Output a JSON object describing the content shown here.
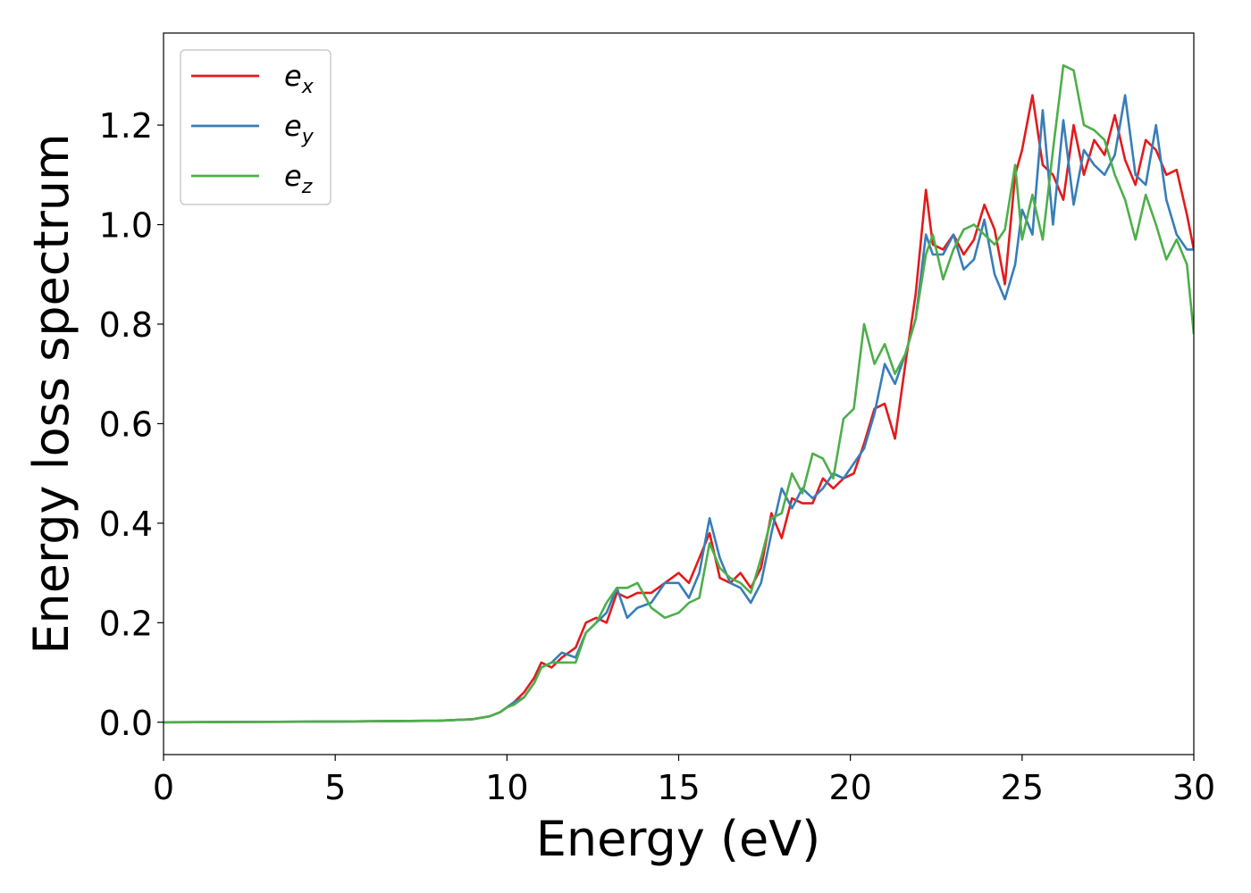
{
  "chart_data": {
    "type": "line",
    "title": "",
    "xlabel": "Energy (eV)",
    "ylabel": "Energy loss spectrum",
    "xlim": [
      0,
      30
    ],
    "ylim": [
      -0.065,
      1.385
    ],
    "xticks": [
      0,
      5,
      10,
      15,
      20,
      25,
      30
    ],
    "xtick_labels": [
      "0",
      "5",
      "10",
      "15",
      "20",
      "25",
      "30"
    ],
    "yticks": [
      0.0,
      0.2,
      0.4,
      0.6,
      0.8,
      1.0,
      1.2
    ],
    "ytick_labels": [
      "0.0",
      "0.2",
      "0.4",
      "0.6",
      "0.8",
      "1.0",
      "1.2"
    ],
    "grid": false,
    "legend_position": "top-left",
    "series": [
      {
        "name": "e_x",
        "legend_base": "e",
        "legend_sub": "x",
        "color": "#e41a1c",
        "x": [
          0,
          2,
          4,
          6,
          8,
          9,
          9.5,
          9.8,
          10.0,
          10.2,
          10.5,
          10.8,
          11.0,
          11.3,
          11.6,
          12.0,
          12.3,
          12.6,
          12.9,
          13.2,
          13.5,
          13.8,
          14.2,
          14.6,
          15.0,
          15.3,
          15.6,
          15.9,
          16.2,
          16.5,
          16.8,
          17.1,
          17.4,
          17.7,
          18.0,
          18.3,
          18.6,
          18.9,
          19.2,
          19.5,
          19.8,
          20.1,
          20.4,
          20.7,
          21.0,
          21.3,
          21.6,
          21.9,
          22.2,
          22.4,
          22.7,
          23.0,
          23.3,
          23.6,
          23.9,
          24.2,
          24.5,
          24.8,
          25.0,
          25.3,
          25.6,
          25.9,
          26.2,
          26.5,
          26.8,
          27.1,
          27.4,
          27.7,
          28.0,
          28.3,
          28.6,
          28.9,
          29.2,
          29.5,
          29.8,
          30.0
        ],
        "y": [
          0.0,
          0.0005,
          0.001,
          0.002,
          0.003,
          0.006,
          0.012,
          0.02,
          0.03,
          0.04,
          0.06,
          0.09,
          0.12,
          0.11,
          0.13,
          0.15,
          0.2,
          0.21,
          0.2,
          0.26,
          0.25,
          0.26,
          0.26,
          0.28,
          0.3,
          0.28,
          0.33,
          0.38,
          0.29,
          0.28,
          0.3,
          0.27,
          0.31,
          0.42,
          0.37,
          0.45,
          0.44,
          0.44,
          0.49,
          0.47,
          0.49,
          0.5,
          0.56,
          0.63,
          0.64,
          0.57,
          0.72,
          0.86,
          1.07,
          0.96,
          0.95,
          0.98,
          0.94,
          0.97,
          1.04,
          0.99,
          0.88,
          1.1,
          1.15,
          1.26,
          1.12,
          1.1,
          1.05,
          1.2,
          1.1,
          1.17,
          1.14,
          1.22,
          1.13,
          1.08,
          1.17,
          1.15,
          1.1,
          1.11,
          1.02,
          0.95
        ]
      },
      {
        "name": "e_y",
        "legend_base": "e",
        "legend_sub": "y",
        "color": "#377eb8",
        "x": [
          0,
          2,
          4,
          6,
          8,
          9,
          9.5,
          9.8,
          10.0,
          10.2,
          10.5,
          10.8,
          11.0,
          11.3,
          11.6,
          12.0,
          12.3,
          12.6,
          12.9,
          13.2,
          13.5,
          13.8,
          14.2,
          14.6,
          15.0,
          15.3,
          15.6,
          15.9,
          16.2,
          16.5,
          16.8,
          17.1,
          17.4,
          17.7,
          18.0,
          18.3,
          18.6,
          18.9,
          19.2,
          19.5,
          19.8,
          20.1,
          20.4,
          20.7,
          21.0,
          21.3,
          21.6,
          21.9,
          22.2,
          22.4,
          22.7,
          23.0,
          23.3,
          23.6,
          23.9,
          24.2,
          24.5,
          24.8,
          25.0,
          25.3,
          25.6,
          25.9,
          26.2,
          26.5,
          26.8,
          27.1,
          27.4,
          27.7,
          28.0,
          28.3,
          28.6,
          28.9,
          29.2,
          29.5,
          29.8,
          30.0
        ],
        "y": [
          0.0,
          0.0005,
          0.001,
          0.002,
          0.003,
          0.006,
          0.012,
          0.02,
          0.03,
          0.04,
          0.05,
          0.08,
          0.11,
          0.12,
          0.14,
          0.13,
          0.18,
          0.2,
          0.22,
          0.27,
          0.21,
          0.23,
          0.24,
          0.28,
          0.28,
          0.25,
          0.3,
          0.41,
          0.33,
          0.28,
          0.27,
          0.24,
          0.28,
          0.38,
          0.47,
          0.43,
          0.47,
          0.45,
          0.47,
          0.5,
          0.49,
          0.52,
          0.55,
          0.62,
          0.72,
          0.68,
          0.74,
          0.81,
          0.98,
          0.94,
          0.94,
          0.98,
          0.91,
          0.93,
          1.01,
          0.9,
          0.85,
          0.92,
          1.03,
          0.98,
          1.23,
          1.0,
          1.21,
          1.04,
          1.15,
          1.12,
          1.1,
          1.14,
          1.26,
          1.1,
          1.08,
          1.2,
          1.05,
          0.98,
          0.95,
          0.95
        ]
      },
      {
        "name": "e_z",
        "legend_base": "e",
        "legend_sub": "z",
        "color": "#4daf4a",
        "x": [
          0,
          2,
          4,
          6,
          8,
          9,
          9.5,
          9.8,
          10.0,
          10.2,
          10.5,
          10.8,
          11.0,
          11.3,
          11.6,
          12.0,
          12.3,
          12.6,
          12.9,
          13.2,
          13.5,
          13.8,
          14.2,
          14.6,
          15.0,
          15.3,
          15.6,
          15.9,
          16.2,
          16.5,
          16.8,
          17.1,
          17.4,
          17.7,
          18.0,
          18.3,
          18.6,
          18.9,
          19.2,
          19.5,
          19.8,
          20.1,
          20.4,
          20.7,
          21.0,
          21.3,
          21.6,
          21.9,
          22.2,
          22.4,
          22.7,
          23.0,
          23.3,
          23.6,
          23.9,
          24.2,
          24.5,
          24.8,
          25.0,
          25.3,
          25.6,
          25.9,
          26.2,
          26.5,
          26.8,
          27.1,
          27.4,
          27.7,
          28.0,
          28.3,
          28.6,
          28.9,
          29.2,
          29.5,
          29.8,
          30.0
        ],
        "y": [
          0.0,
          0.0005,
          0.001,
          0.002,
          0.003,
          0.006,
          0.012,
          0.02,
          0.03,
          0.035,
          0.05,
          0.08,
          0.11,
          0.12,
          0.12,
          0.12,
          0.18,
          0.2,
          0.24,
          0.27,
          0.27,
          0.28,
          0.23,
          0.21,
          0.22,
          0.24,
          0.25,
          0.36,
          0.31,
          0.29,
          0.28,
          0.26,
          0.33,
          0.41,
          0.42,
          0.5,
          0.46,
          0.54,
          0.53,
          0.49,
          0.61,
          0.63,
          0.8,
          0.72,
          0.76,
          0.7,
          0.74,
          0.81,
          0.94,
          0.98,
          0.89,
          0.95,
          0.99,
          1.0,
          0.98,
          0.96,
          0.99,
          1.12,
          0.97,
          1.06,
          0.97,
          1.15,
          1.32,
          1.31,
          1.2,
          1.19,
          1.17,
          1.1,
          1.05,
          0.97,
          1.06,
          1.0,
          0.93,
          0.97,
          0.92,
          0.78
        ]
      }
    ]
  }
}
